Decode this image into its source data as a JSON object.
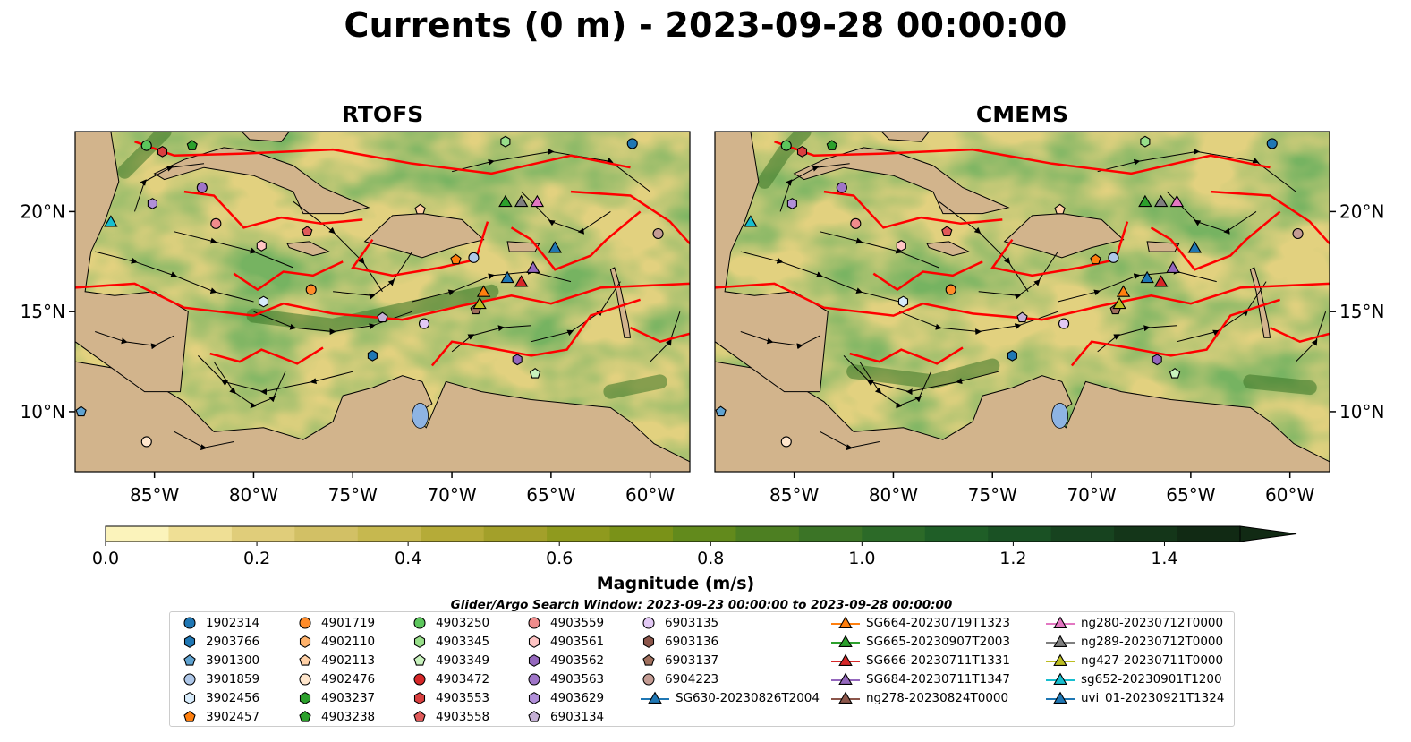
{
  "title": "Currents (0 m) - 2023-09-28 00:00:00",
  "panels": [
    {
      "title": "RTOFS"
    },
    {
      "title": "CMEMS"
    }
  ],
  "axes": {
    "x_ticks": [
      "85°W",
      "80°W",
      "75°W",
      "70°W",
      "65°W",
      "60°W"
    ],
    "y_ticks": [
      "20°N",
      "15°N",
      "10°N"
    ],
    "x_tick_values": [
      -85,
      -80,
      -75,
      -70,
      -65,
      -60
    ],
    "y_tick_values": [
      20,
      15,
      10
    ],
    "xlim": [
      -89,
      -58
    ],
    "ylim": [
      7,
      24
    ]
  },
  "colorbar": {
    "label": "Magnitude (m/s)",
    "ticks": [
      "0.0",
      "0.2",
      "0.4",
      "0.6",
      "0.8",
      "1.0",
      "1.2",
      "1.4"
    ],
    "tick_values": [
      0.0,
      0.2,
      0.4,
      0.6,
      0.8,
      1.0,
      1.2,
      1.4
    ],
    "range": [
      0,
      1.5
    ],
    "extend": "max",
    "colors": [
      "#fbf3bb",
      "#efdf95",
      "#e0cd7a",
      "#d2c065",
      "#c6b84f",
      "#b5ab38",
      "#a3a02a",
      "#8f9a1e",
      "#7a9218",
      "#628a1c",
      "#4d7f22",
      "#3b7426",
      "#2c6a28",
      "#1f5e27",
      "#1a5124",
      "#17431f",
      "#143619",
      "#112a14"
    ]
  },
  "chart_data": {
    "type": "heatmap",
    "title": "Currents (0 m) - 2023-09-28 00:00:00",
    "panel_titles": [
      "RTOFS",
      "CMEMS"
    ],
    "variable": "Magnitude (m/s)",
    "xlim": [
      -89,
      -58
    ],
    "ylim": [
      7,
      24
    ],
    "legend_placement": "bottom",
    "markers_shared": true,
    "argo_floats": [
      {
        "id": "1902314",
        "lon": -60.9,
        "lat": 23.4
      },
      {
        "id": "3901300",
        "lon": -88.7,
        "lat": 10.0
      },
      {
        "id": "4903250",
        "lon": -85.4,
        "lat": 23.3
      },
      {
        "id": "4903238",
        "lon": -83.1,
        "lat": 23.3
      },
      {
        "id": "4903553",
        "lon": -84.6,
        "lat": 23.0
      },
      {
        "id": "4903345",
        "lon": -67.3,
        "lat": 23.5
      },
      {
        "id": "4903629",
        "lon": -85.1,
        "lat": 20.4
      },
      {
        "id": "4903563",
        "lon": -82.6,
        "lat": 21.2
      },
      {
        "id": "4903559",
        "lon": -81.9,
        "lat": 19.4
      },
      {
        "id": "4903561",
        "lon": -79.6,
        "lat": 18.3
      },
      {
        "id": "4903558",
        "lon": -77.3,
        "lat": 19.0
      },
      {
        "id": "4902113",
        "lon": -71.6,
        "lat": 20.1
      },
      {
        "id": "3902457",
        "lon": -69.8,
        "lat": 17.6
      },
      {
        "id": "3901859",
        "lon": -68.9,
        "lat": 17.7
      },
      {
        "id": "6904223",
        "lon": -59.6,
        "lat": 18.9
      },
      {
        "id": "4901719",
        "lon": -77.1,
        "lat": 16.1
      },
      {
        "id": "3902456",
        "lon": -79.5,
        "lat": 15.5
      },
      {
        "id": "6903134",
        "lon": -73.5,
        "lat": 14.7
      },
      {
        "id": "6903135",
        "lon": -71.4,
        "lat": 14.4
      },
      {
        "id": "2903766",
        "lon": -74.0,
        "lat": 12.8
      },
      {
        "id": "4902476",
        "lon": -85.4,
        "lat": 8.5
      },
      {
        "id": "4903562",
        "lon": -66.7,
        "lat": 12.6
      },
      {
        "id": "4903349",
        "lon": -65.8,
        "lat": 11.9
      },
      {
        "id": "6903137",
        "lon": -68.8,
        "lat": 15.1
      }
    ],
    "gliders": [
      {
        "id": "SG665-20230907T2003",
        "lon": -67.3,
        "lat": 20.5
      },
      {
        "id": "ng289-20230712T0000",
        "lon": -66.5,
        "lat": 20.5
      },
      {
        "id": "ng280-20230712T0000",
        "lon": -65.7,
        "lat": 20.5
      },
      {
        "id": "sg652-20230901T1200",
        "lon": -87.2,
        "lat": 19.5
      },
      {
        "id": "uvi_01-20230921T1324",
        "lon": -64.8,
        "lat": 18.2
      },
      {
        "id": "SG684-20230711T1347",
        "lon": -65.9,
        "lat": 17.2
      },
      {
        "id": "SG630-20230826T2004",
        "lon": -67.2,
        "lat": 16.7
      },
      {
        "id": "SG666-20230711T1331",
        "lon": -66.5,
        "lat": 16.5
      },
      {
        "id": "SG664-20230719T1323",
        "lon": -68.4,
        "lat": 16.0
      },
      {
        "id": "ng427-20230711T0000",
        "lon": -68.6,
        "lat": 15.4
      }
    ]
  },
  "legend": {
    "title": "Glider/Argo Search Window: 2023-09-23 00:00:00 to 2023-09-28 00:00:00",
    "items": [
      {
        "label": "1902314",
        "marker": "circle",
        "color": "#1f77b4"
      },
      {
        "label": "2903766",
        "marker": "hexagon",
        "color": "#1f77b4"
      },
      {
        "label": "3901300",
        "marker": "pentagon",
        "color": "#5fa2d0"
      },
      {
        "label": "3901859",
        "marker": "circle",
        "color": "#aec7e8"
      },
      {
        "label": "3902456",
        "marker": "hexagon",
        "color": "#d8ecfb"
      },
      {
        "label": "3902457",
        "marker": "pentagon",
        "color": "#ff7f0e"
      },
      {
        "label": "4901719",
        "marker": "circle",
        "color": "#ff8c2a"
      },
      {
        "label": "4902110",
        "marker": "hexagon",
        "color": "#ffb26b"
      },
      {
        "label": "4902113",
        "marker": "pentagon",
        "color": "#ffd0a6"
      },
      {
        "label": "4902476",
        "marker": "circle",
        "color": "#ffe6cc"
      },
      {
        "label": "4903237",
        "marker": "hexagon",
        "color": "#2ca02c"
      },
      {
        "label": "4903238",
        "marker": "pentagon",
        "color": "#2ca02c"
      },
      {
        "label": "4903250",
        "marker": "circle",
        "color": "#5cc65c"
      },
      {
        "label": "4903345",
        "marker": "hexagon",
        "color": "#98df8a"
      },
      {
        "label": "4903349",
        "marker": "pentagon",
        "color": "#c8f2bd"
      },
      {
        "label": "4903472",
        "marker": "circle",
        "color": "#d62728"
      },
      {
        "label": "4903553",
        "marker": "hexagon",
        "color": "#d94040"
      },
      {
        "label": "4903558",
        "marker": "pentagon",
        "color": "#e05a5a"
      },
      {
        "label": "4903559",
        "marker": "circle",
        "color": "#f08c8c"
      },
      {
        "label": "4903561",
        "marker": "hexagon",
        "color": "#ffc4c4"
      },
      {
        "label": "4903562",
        "marker": "hexagon",
        "color": "#9467bd"
      },
      {
        "label": "4903563",
        "marker": "circle",
        "color": "#9f75c8"
      },
      {
        "label": "4903629",
        "marker": "hexagon",
        "color": "#b18fd9"
      },
      {
        "label": "6903134",
        "marker": "pentagon",
        "color": "#c5b0d5"
      },
      {
        "label": "6903135",
        "marker": "circle",
        "color": "#e3c9f5"
      },
      {
        "label": "6903136",
        "marker": "hexagon",
        "color": "#8c564b"
      },
      {
        "label": "6903137",
        "marker": "pentagon",
        "color": "#a0705e"
      },
      {
        "label": "6904223",
        "marker": "circle",
        "color": "#c49c94"
      },
      {
        "label": "SG630-20230826T2004",
        "marker": "triangle-line",
        "color": "#1f77b4"
      },
      {
        "label": "SG664-20230719T1323",
        "marker": "triangle-line",
        "color": "#ff7f0e"
      },
      {
        "label": "SG665-20230907T2003",
        "marker": "triangle-line",
        "color": "#2ca02c"
      },
      {
        "label": "SG666-20230711T1331",
        "marker": "triangle-line",
        "color": "#d62728"
      },
      {
        "label": "SG684-20230711T1347",
        "marker": "triangle-line",
        "color": "#9467bd"
      },
      {
        "label": "ng278-20230824T0000",
        "marker": "triangle-line",
        "color": "#8c564b"
      },
      {
        "label": "ng280-20230712T0000",
        "marker": "triangle-line",
        "color": "#e377c2"
      },
      {
        "label": "ng289-20230712T0000",
        "marker": "triangle-line",
        "color": "#7f7f7f"
      },
      {
        "label": "ng427-20230711T0000",
        "marker": "triangle-line",
        "color": "#bcbd22"
      },
      {
        "label": "sg652-20230901T1200",
        "marker": "triangle-line",
        "color": "#17becf"
      },
      {
        "label": "uvi_01-20230921T1324",
        "marker": "triangle-line",
        "color": "#1f77b4"
      }
    ]
  }
}
